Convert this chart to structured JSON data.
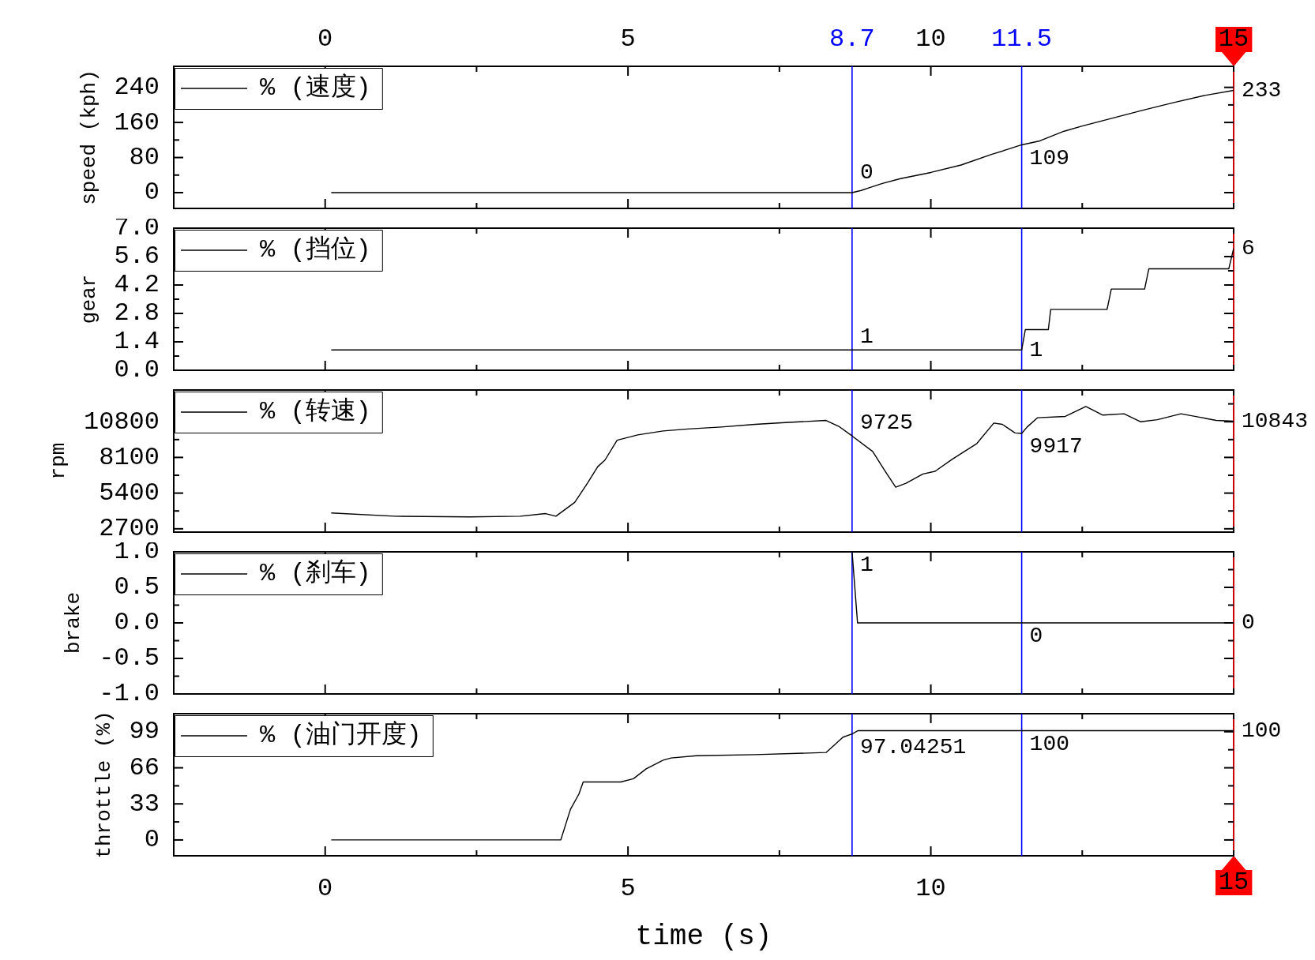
{
  "chart_data": [
    {
      "type": "line",
      "ylabel": "speed (kph)",
      "x": [
        0.1,
        8.7,
        8.85,
        9.0,
        9.2,
        9.5,
        10.0,
        10.5,
        11.0,
        11.3,
        11.5,
        11.8,
        12.2,
        12.5,
        13.0,
        13.5,
        14.0,
        14.5,
        15
      ],
      "series": [
        {
          "name": "% (速度)",
          "color": "#000000",
          "values": [
            0,
            0,
            5,
            12,
            21,
            32,
            46,
            63,
            87,
            100,
            109,
            118,
            140,
            152,
            170,
            188,
            205,
            221,
            233
          ]
        }
      ],
      "xlim": [
        -2.5,
        15
      ],
      "xticks": [
        0,
        {
          "value": 2.5,
          "label": null
        },
        5,
        {
          "value": 7.5,
          "label": null
        },
        10,
        {
          "value": 12.5,
          "label": null
        },
        {
          "value": 15,
          "label": null
        }
      ],
      "x2lim": [
        -2.5,
        15
      ],
      "x2ticks": [
        0,
        {
          "value": 2.5,
          "label": null
        },
        5,
        {
          "value": 7.5,
          "label": null
        },
        10,
        {
          "value": 12.5,
          "label": null
        },
        {
          "value": 15,
          "label": null
        }
      ],
      "ylim": [
        -36,
        288
      ],
      "yticks": [
        0,
        {
          "value": 40,
          "label": null
        },
        80,
        {
          "value": 120,
          "label": null
        },
        160,
        {
          "value": 200,
          "label": null
        },
        240
      ],
      "ref_lines": [
        {
          "axis": "x",
          "value": 8.7,
          "label": "8.7",
          "color": "#0000ff"
        },
        {
          "axis": "x",
          "value": 11.5,
          "label": "11.5",
          "color": "#0000ff"
        },
        {
          "axis": "x",
          "value": 15,
          "label": "15",
          "color": "#ff0000"
        }
      ],
      "annotations": [
        {
          "text": "0",
          "x": 8.7,
          "y": 0
        },
        {
          "text": "109",
          "x": 11.5,
          "y": 109
        },
        {
          "text": "233",
          "x": 15,
          "y": 233
        }
      ],
      "legend": "top left",
      "tick_labels": "y"
    },
    {
      "type": "line",
      "ylabel": "gear",
      "x": [
        0.1,
        11.5,
        11.56,
        11.94,
        11.98,
        12.91,
        12.98,
        13.53,
        13.6,
        14.92,
        15
      ],
      "series": [
        {
          "name": "% (挡位)",
          "color": "#000000",
          "values": [
            1,
            1,
            2,
            2,
            3,
            3,
            4,
            4,
            5,
            5,
            6
          ]
        }
      ],
      "xlim": [
        -2.5,
        15
      ],
      "xticks": [
        0,
        {
          "value": 2.5,
          "label": null
        },
        5,
        {
          "value": 7.5,
          "label": null
        },
        10,
        {
          "value": 12.5,
          "label": null
        },
        {
          "value": 15,
          "label": null
        }
      ],
      "ylim": [
        0,
        7
      ],
      "yticks": [
        {
          "value": 0,
          "label": "0.0"
        },
        {
          "value": 0.7,
          "label": null
        },
        1.4,
        {
          "value": 2.1,
          "label": null
        },
        2.8,
        {
          "value": 3.5,
          "label": null
        },
        4.2,
        {
          "value": 4.9,
          "label": null
        },
        5.6,
        {
          "value": 6.3,
          "label": null
        },
        {
          "value": 7,
          "label": "7.0"
        }
      ],
      "ref_lines": [
        {
          "axis": "x",
          "value": 8.7,
          "color": "#0000ff"
        },
        {
          "axis": "x",
          "value": 11.5,
          "color": "#0000ff"
        },
        {
          "axis": "x",
          "value": 15,
          "color": "#ff0000"
        }
      ],
      "annotations": [
        {
          "text": "1",
          "x": 8.7,
          "y": 1
        },
        {
          "text": "1",
          "x": 11.5,
          "y": 1
        },
        {
          "text": "6",
          "x": 15,
          "y": 6
        }
      ],
      "legend": "top left",
      "tick_labels": "y"
    },
    {
      "type": "line",
      "ylabel": "rpm",
      "x": [
        0.1,
        1.15,
        2.39,
        3.22,
        3.64,
        3.81,
        4.12,
        4.33,
        4.5,
        4.62,
        4.82,
        5.16,
        5.58,
        5.99,
        6.54,
        7.1,
        7.65,
        8.27,
        8.48,
        8.7,
        9.04,
        9.24,
        9.42,
        9.59,
        9.87,
        10.07,
        10.35,
        10.76,
        11.04,
        11.18,
        11.39,
        11.5,
        11.59,
        11.76,
        12.22,
        12.56,
        12.84,
        13.19,
        13.46,
        13.74,
        14.13,
        14.43,
        14.71,
        15
      ],
      "series": [
        {
          "name": "% (转速)",
          "color": "#000000",
          "values": [
            3900,
            3650,
            3600,
            3650,
            3850,
            3650,
            4700,
            6150,
            7400,
            7900,
            9400,
            9800,
            10100,
            10250,
            10400,
            10600,
            10750,
            10900,
            10450,
            9725,
            8550,
            7100,
            5850,
            6150,
            6850,
            7050,
            7950,
            9150,
            10700,
            10600,
            9950,
            9917,
            10400,
            11100,
            11200,
            11950,
            11300,
            11400,
            10800,
            10950,
            11400,
            11150,
            10900,
            10843
          ]
        }
      ],
      "xlim": [
        -2.5,
        15
      ],
      "xticks": [
        0,
        {
          "value": 2.5,
          "label": null
        },
        5,
        {
          "value": 7.5,
          "label": null
        },
        10,
        {
          "value": 12.5,
          "label": null
        },
        {
          "value": 15,
          "label": null
        }
      ],
      "ylim": [
        2450,
        13200
      ],
      "yticks": [
        2700,
        {
          "value": 4050,
          "label": null
        },
        5400,
        {
          "value": 6750,
          "label": null
        },
        8100,
        {
          "value": 9450,
          "label": null
        },
        10800,
        {
          "value": 12150,
          "label": null
        }
      ],
      "ref_lines": [
        {
          "axis": "x",
          "value": 8.7,
          "color": "#0000ff"
        },
        {
          "axis": "x",
          "value": 11.5,
          "color": "#0000ff"
        },
        {
          "axis": "x",
          "value": 15,
          "color": "#ff0000"
        }
      ],
      "annotations": [
        {
          "text": "9725",
          "x": 8.7,
          "y": 9725
        },
        {
          "text": "9917",
          "x": 11.5,
          "y": 9917
        },
        {
          "text": "10843",
          "x": 15,
          "y": 10843
        }
      ],
      "legend": "top left",
      "tick_labels": "y"
    },
    {
      "type": "line",
      "ylabel": "brake",
      "x": [
        8.7,
        8.79,
        15
      ],
      "series": [
        {
          "name": "% (刹车)",
          "color": "#000000",
          "values": [
            1,
            0,
            0
          ]
        }
      ],
      "xlim": [
        -2.5,
        15
      ],
      "xticks": [
        0,
        {
          "value": 2.5,
          "label": null
        },
        5,
        {
          "value": 7.5,
          "label": null
        },
        10,
        {
          "value": 12.5,
          "label": null
        },
        {
          "value": 15,
          "label": null
        }
      ],
      "ylim": [
        -1,
        1
      ],
      "yticks": [
        {
          "value": -1,
          "label": "-1.0"
        },
        {
          "value": -0.75,
          "label": null
        },
        -0.5,
        {
          "value": -0.25,
          "label": null
        },
        {
          "value": 0,
          "label": "0.0"
        },
        {
          "value": 0.25,
          "label": null
        },
        0.5,
        {
          "value": 0.75,
          "label": null
        },
        {
          "value": 1,
          "label": "1.0"
        }
      ],
      "ref_lines": [
        {
          "axis": "x",
          "value": 8.7,
          "color": "#0000ff"
        },
        {
          "axis": "x",
          "value": 11.5,
          "color": "#0000ff"
        },
        {
          "axis": "x",
          "value": 15,
          "color": "#ff0000"
        }
      ],
      "annotations": [
        {
          "text": "1",
          "x": 8.7,
          "y": 1
        },
        {
          "text": "0",
          "x": 11.5,
          "y": 0
        },
        {
          "text": "0",
          "x": 15,
          "y": 0
        }
      ],
      "legend": "top left",
      "tick_labels": "y"
    },
    {
      "type": "line",
      "ylabel": "throttle (%)",
      "xlabel": "time (s)",
      "x": [
        0.1,
        3.89,
        4.05,
        4.19,
        4.26,
        4.47,
        4.88,
        5.09,
        5.3,
        5.58,
        5.71,
        6.13,
        7.1,
        8.27,
        8.41,
        8.55,
        8.7,
        8.8,
        15
      ],
      "series": [
        {
          "name": "% (油门开度)",
          "color": "#000000",
          "values": [
            0,
            0,
            28,
            42,
            53,
            53,
            53,
            56,
            65,
            73,
            75,
            77,
            78,
            80,
            87,
            94,
            97.04251,
            100,
            100
          ]
        }
      ],
      "xlim": [
        -2.5,
        15
      ],
      "xticks": [
        0,
        {
          "value": 2.5,
          "label": null
        },
        5,
        {
          "value": 7.5,
          "label": null
        },
        10,
        {
          "value": 12.5,
          "label": null
        },
        {
          "value": 15,
          "label": null
        }
      ],
      "ylim": [
        -14.5,
        115.5
      ],
      "yticks": [
        0,
        {
          "value": 16.5,
          "label": null
        },
        33,
        {
          "value": 49.5,
          "label": null
        },
        66,
        {
          "value": 82.5,
          "label": null
        },
        99
      ],
      "ref_lines": [
        {
          "axis": "x",
          "value": 8.7,
          "color": "#0000ff"
        },
        {
          "axis": "x",
          "value": 11.5,
          "color": "#0000ff"
        },
        {
          "axis": "x",
          "value": 15,
          "label": "15",
          "color": "#ff0000"
        }
      ],
      "annotations": [
        {
          "text": "97.04251",
          "x": 8.7,
          "y": 97.04251
        },
        {
          "text": "100",
          "x": 11.5,
          "y": 100
        },
        {
          "text": "100",
          "x": 15,
          "y": 100
        }
      ],
      "legend": "top left"
    }
  ]
}
